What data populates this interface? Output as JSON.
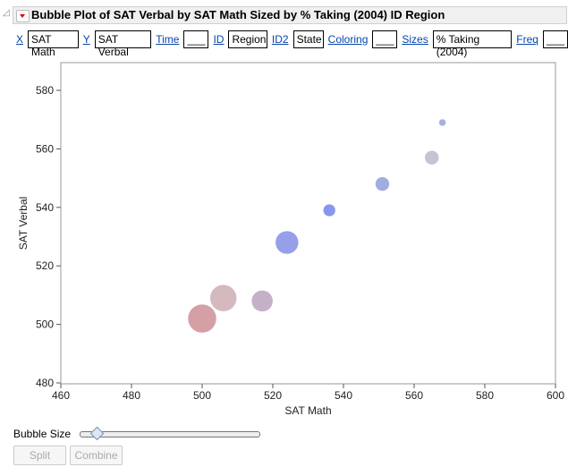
{
  "title": "Bubble Plot of SAT Verbal by SAT Math Sized by % Taking (2004) ID Region",
  "roles": [
    {
      "label": "X",
      "value": "SAT Math"
    },
    {
      "label": "Y",
      "value": "SAT Verbal"
    },
    {
      "label": "Time",
      "value": "___"
    },
    {
      "label": "ID",
      "value": "Region"
    },
    {
      "label": "ID2",
      "value": "State"
    },
    {
      "label": "Coloring",
      "value": "___"
    },
    {
      "label": "Sizes",
      "value": "% Taking (2004)"
    },
    {
      "label": "Freq",
      "value": "___"
    }
  ],
  "controls": {
    "bubble_size_label": "Bubble Size",
    "bubble_size_level": 0.07,
    "split_label": "Split",
    "combine_label": "Combine"
  },
  "chart_data": {
    "type": "scatter",
    "subtype": "bubble",
    "xlabel": "SAT Math",
    "ylabel": "SAT Verbal",
    "xlim": [
      460,
      600
    ],
    "ylim": [
      480,
      590
    ],
    "xticks": [
      460,
      480,
      500,
      520,
      540,
      560,
      580,
      600
    ],
    "yticks": [
      480,
      500,
      520,
      540,
      560,
      580
    ],
    "grid": false,
    "points": [
      {
        "x": 500,
        "y": 502,
        "size": 64,
        "color": "#d4a0a6"
      },
      {
        "x": 506,
        "y": 509,
        "size": 56,
        "color": "#d4b9bf"
      },
      {
        "x": 517,
        "y": 508,
        "size": 36,
        "color": "#c4b0c8"
      },
      {
        "x": 524,
        "y": 528,
        "size": 42,
        "color": "#95a0e8"
      },
      {
        "x": 536,
        "y": 539,
        "size": 12,
        "color": "#8896ef"
      },
      {
        "x": 551,
        "y": 548,
        "size": 16,
        "color": "#a3ace0"
      },
      {
        "x": 565,
        "y": 557,
        "size": 16,
        "color": "#c4c4d6"
      },
      {
        "x": 568,
        "y": 569,
        "size": 4,
        "color": "#aab0dc"
      }
    ]
  }
}
